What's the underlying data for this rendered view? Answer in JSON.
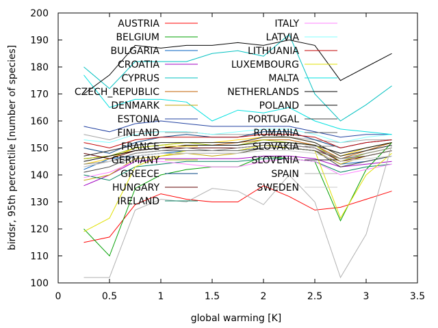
{
  "chart_data": {
    "type": "line",
    "xlabel": "global warming [K]",
    "ylabel": "birdsr, 95th percentile [number of species]",
    "xlim": [
      0,
      3.5
    ],
    "ylim": [
      100,
      200
    ],
    "xticks": [
      "0",
      "0.5",
      "1",
      "1.5",
      "2",
      "2.5",
      "3",
      "3.5"
    ],
    "yticks": [
      "100",
      "110",
      "120",
      "130",
      "140",
      "150",
      "160",
      "170",
      "180",
      "190",
      "200"
    ],
    "grid": false,
    "legend_placement": "top, two columns",
    "x": [
      0.25,
      0.5,
      0.75,
      1.0,
      1.25,
      1.5,
      1.75,
      2.0,
      2.25,
      2.5,
      2.75,
      3.0,
      3.25
    ],
    "series": [
      {
        "name": "AUSTRIA",
        "color": "#ff0000",
        "values": [
          115,
          117,
          129,
          133,
          131,
          130,
          130,
          136,
          132,
          127,
          128,
          131,
          134
        ]
      },
      {
        "name": "BELGIUM",
        "color": "#00a000",
        "values": [
          120,
          110,
          135,
          140,
          142,
          143,
          143,
          147,
          146,
          145,
          123,
          142,
          152
        ]
      },
      {
        "name": "BULGARIA",
        "color": "#0060c0",
        "values": [
          142,
          146,
          147,
          148,
          149,
          149,
          149,
          150,
          150,
          149,
          144,
          145,
          147
        ]
      },
      {
        "name": "CROATIA",
        "color": "#a000c0",
        "values": [
          136,
          140,
          145,
          146,
          146,
          146,
          146,
          147,
          147,
          146,
          143,
          144,
          145
        ]
      },
      {
        "name": "CYPRUS",
        "color": "#00c0c0",
        "values": [
          180,
          172,
          182,
          182,
          182,
          185,
          186,
          184,
          192,
          170,
          160,
          166,
          173
        ]
      },
      {
        "name": "CZECH_REPUBLIC",
        "color": "#c06000",
        "values": [
          146,
          147,
          149,
          150,
          151,
          151,
          152,
          153,
          153,
          151,
          146,
          149,
          152
        ]
      },
      {
        "name": "DENMARK",
        "color": "#c0a000",
        "values": [
          138,
          140,
          146,
          147,
          148,
          147,
          148,
          150,
          150,
          149,
          144,
          147,
          149
        ]
      },
      {
        "name": "ESTONIA",
        "color": "#2040a0",
        "values": [
          158,
          156,
          159,
          160,
          159,
          158,
          158,
          158,
          158,
          156,
          154,
          155,
          155
        ]
      },
      {
        "name": "FINLAND",
        "color": "#a0a0a0",
        "values": [
          155,
          153,
          156,
          156,
          156,
          155,
          155,
          155,
          154,
          153,
          152,
          153,
          153
        ]
      },
      {
        "name": "FRANCE",
        "color": "#ffd000",
        "values": [
          144,
          146,
          150,
          151,
          152,
          152,
          153,
          154,
          154,
          152,
          147,
          150,
          152
        ]
      },
      {
        "name": "GERMANY",
        "color": "#a0c000",
        "values": [
          146,
          147,
          150,
          151,
          152,
          151,
          151,
          153,
          152,
          151,
          145,
          148,
          150
        ]
      },
      {
        "name": "GREECE",
        "color": "#004080",
        "values": [
          150,
          148,
          152,
          154,
          155,
          154,
          154,
          156,
          156,
          153,
          150,
          152,
          153
        ]
      },
      {
        "name": "HUNGARY",
        "color": "#600000",
        "values": [
          148,
          146,
          149,
          150,
          150,
          150,
          150,
          151,
          151,
          150,
          145,
          147,
          149
        ]
      },
      {
        "name": "IRELAND",
        "color": "#008060",
        "values": [
          140,
          138,
          143,
          144,
          145,
          145,
          145,
          146,
          146,
          145,
          141,
          143,
          144
        ]
      },
      {
        "name": "ITALY",
        "color": "#ff80ff",
        "values": [
          139,
          141,
          145,
          145,
          144,
          143,
          143,
          145,
          146,
          145,
          140,
          142,
          144
        ]
      },
      {
        "name": "LATVIA",
        "color": "#80ffff",
        "values": [
          153,
          152,
          155,
          156,
          156,
          155,
          156,
          157,
          157,
          155,
          152,
          154,
          155
        ]
      },
      {
        "name": "LITHUANIA",
        "color": "#c00000",
        "values": [
          152,
          150,
          153,
          154,
          154,
          154,
          154,
          155,
          155,
          154,
          150,
          152,
          153
        ]
      },
      {
        "name": "LUXEMBOURG",
        "color": "#e0e000",
        "values": [
          119,
          124,
          143,
          147,
          149,
          149,
          149,
          151,
          150,
          149,
          124,
          140,
          148
        ]
      },
      {
        "name": "MALTA",
        "color": "#00e0e0",
        "values": [
          177,
          165,
          168,
          168,
          167,
          160,
          164,
          163,
          165,
          160,
          157,
          156,
          155
        ]
      },
      {
        "name": "NETHERLANDS",
        "color": "#000000",
        "values": [
          170,
          177,
          188,
          187,
          188,
          188,
          189,
          188,
          190,
          188,
          175,
          180,
          185
        ]
      },
      {
        "name": "POLAND",
        "color": "#000000",
        "values": [
          145,
          147,
          149,
          150,
          151,
          151,
          151,
          152,
          152,
          151,
          148,
          150,
          152
        ]
      },
      {
        "name": "PORTUGAL",
        "color": "#404040",
        "values": [
          141,
          143,
          147,
          148,
          148,
          148,
          148,
          150,
          150,
          149,
          143,
          145,
          147
        ]
      },
      {
        "name": "ROMANIA",
        "color": "#606060",
        "values": [
          143,
          145,
          148,
          149,
          149,
          149,
          149,
          150,
          150,
          149,
          146,
          147,
          149
        ]
      },
      {
        "name": "SLOVAKIA",
        "color": "#808080",
        "values": [
          144,
          145,
          148,
          149,
          150,
          149,
          150,
          151,
          151,
          150,
          146,
          148,
          150
        ]
      },
      {
        "name": "SLOVENIA",
        "color": "#202020",
        "values": [
          147,
          149,
          151,
          152,
          152,
          152,
          152,
          154,
          154,
          152,
          147,
          149,
          151
        ]
      },
      {
        "name": "SPAIN",
        "color": "#b0b0b0",
        "values": [
          102,
          102,
          127,
          131,
          130,
          135,
          134,
          129,
          140,
          130,
          102,
          118,
          151
        ]
      },
      {
        "name": "SWEDEN",
        "color": "#c8c8c8",
        "values": [
          143,
          145,
          147,
          148,
          148,
          148,
          148,
          149,
          149,
          148,
          145,
          146,
          147
        ]
      }
    ]
  }
}
